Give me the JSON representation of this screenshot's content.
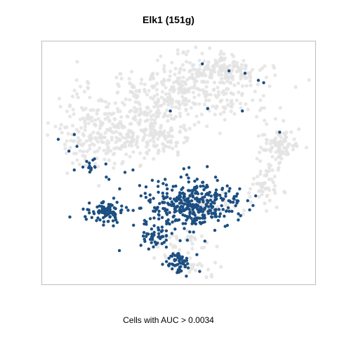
{
  "chart_data": {
    "type": "scatter",
    "title": "Elk1 (151g)",
    "xlabel": "Cells with AUC > 0.0034",
    "ylabel": "",
    "grid": false,
    "legend": "none",
    "colors": {
      "active": "#1c4f82",
      "background": "#e3e3e3",
      "frame": "#bdbdbd"
    },
    "series": [
      {
        "name": "",
        "color": "#e3e3e3",
        "clusters": [
          {
            "cx": 0.52,
            "cy": 0.8,
            "rx": 0.3,
            "ry": 0.12,
            "n": 340
          },
          {
            "cx": 0.66,
            "cy": 0.9,
            "rx": 0.16,
            "ry": 0.06,
            "n": 140
          },
          {
            "cx": 0.22,
            "cy": 0.62,
            "rx": 0.16,
            "ry": 0.12,
            "n": 230
          },
          {
            "cx": 0.42,
            "cy": 0.64,
            "rx": 0.12,
            "ry": 0.1,
            "n": 140
          },
          {
            "cx": 0.88,
            "cy": 0.57,
            "rx": 0.07,
            "ry": 0.07,
            "n": 90
          },
          {
            "cx": 0.82,
            "cy": 0.4,
            "rx": 0.05,
            "ry": 0.07,
            "n": 55
          },
          {
            "cx": 0.63,
            "cy": 0.31,
            "rx": 0.1,
            "ry": 0.05,
            "n": 40
          },
          {
            "cx": 0.53,
            "cy": 0.16,
            "rx": 0.1,
            "ry": 0.05,
            "n": 35
          },
          {
            "cx": 0.58,
            "cy": 0.06,
            "rx": 0.08,
            "ry": 0.03,
            "n": 20
          }
        ],
        "points": []
      },
      {
        "name": "",
        "color": "#1c4f82",
        "clusters": [
          {
            "cx": 0.55,
            "cy": 0.32,
            "rx": 0.16,
            "ry": 0.09,
            "n": 360
          },
          {
            "cx": 0.43,
            "cy": 0.19,
            "rx": 0.07,
            "ry": 0.04,
            "n": 45
          },
          {
            "cx": 0.23,
            "cy": 0.29,
            "rx": 0.06,
            "ry": 0.04,
            "n": 90
          },
          {
            "cx": 0.5,
            "cy": 0.08,
            "rx": 0.04,
            "ry": 0.04,
            "n": 55
          },
          {
            "cx": 0.17,
            "cy": 0.49,
            "rx": 0.04,
            "ry": 0.03,
            "n": 14
          }
        ],
        "points": [
          {
            "x": 0.59,
            "y": 0.92
          },
          {
            "x": 0.69,
            "y": 0.89
          },
          {
            "x": 0.75,
            "y": 0.88
          },
          {
            "x": 0.8,
            "y": 0.85
          },
          {
            "x": 0.82,
            "y": 0.84
          },
          {
            "x": 0.47,
            "y": 0.72
          },
          {
            "x": 0.61,
            "y": 0.73
          },
          {
            "x": 0.74,
            "y": 0.72
          },
          {
            "x": 0.88,
            "y": 0.63
          },
          {
            "x": 0.05,
            "y": 0.6
          },
          {
            "x": 0.11,
            "y": 0.62
          },
          {
            "x": 0.12,
            "y": 0.57
          },
          {
            "x": 0.09,
            "y": 0.55
          },
          {
            "x": 0.11,
            "y": 0.47
          },
          {
            "x": 0.23,
            "y": 0.44
          },
          {
            "x": 0.3,
            "y": 0.46
          },
          {
            "x": 0.33,
            "y": 0.47
          },
          {
            "x": 0.24,
            "y": 0.43
          },
          {
            "x": 0.28,
            "y": 0.39
          },
          {
            "x": 0.36,
            "y": 0.36
          },
          {
            "x": 0.72,
            "y": 0.34
          },
          {
            "x": 0.79,
            "y": 0.36
          },
          {
            "x": 0.76,
            "y": 0.34
          },
          {
            "x": 0.73,
            "y": 0.39
          },
          {
            "x": 0.69,
            "y": 0.38
          },
          {
            "x": 0.54,
            "y": 0.48
          },
          {
            "x": 0.51,
            "y": 0.44
          },
          {
            "x": 0.53,
            "y": 0.02
          },
          {
            "x": 0.58,
            "y": 0.04
          }
        ]
      }
    ]
  }
}
